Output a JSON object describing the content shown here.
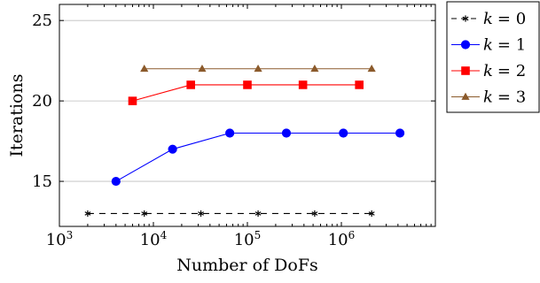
{
  "chart_data": {
    "type": "line",
    "xlabel": "Number of DoFs",
    "ylabel": "Iterations",
    "xscale": "log",
    "xlim": [
      1000,
      10000000
    ],
    "ylim": [
      12.2,
      26
    ],
    "x_ticks": [
      {
        "value": 1000,
        "base": "10",
        "exp": "3"
      },
      {
        "value": 10000,
        "base": "10",
        "exp": "4"
      },
      {
        "value": 100000,
        "base": "10",
        "exp": "5"
      },
      {
        "value": 1000000,
        "base": "10",
        "exp": "6"
      }
    ],
    "y_ticks": [
      "15",
      "20",
      "25"
    ],
    "grid": "horizontal",
    "legend_position": "outside-right",
    "series": [
      {
        "name": "k = 0",
        "label_var": "k",
        "label_eq": "= 0",
        "color": "#000000",
        "marker": "star",
        "dash": true,
        "x": [
          2000,
          8000,
          32000,
          130000,
          520000,
          2100000
        ],
        "y": [
          13,
          13,
          13,
          13,
          13,
          13
        ]
      },
      {
        "name": "k = 1",
        "label_var": "k",
        "label_eq": "= 1",
        "color": "#0000ff",
        "marker": "circle",
        "dash": false,
        "x": [
          4000,
          16000,
          65000,
          260000,
          1050000,
          4200000
        ],
        "y": [
          15,
          17,
          18,
          18,
          18,
          18
        ]
      },
      {
        "name": "k = 2",
        "label_var": "k",
        "label_eq": "= 2",
        "color": "#ff0000",
        "marker": "square",
        "dash": false,
        "x": [
          6000,
          25000,
          100000,
          390000,
          1550000
        ],
        "y": [
          20,
          21,
          21,
          21,
          21
        ]
      },
      {
        "name": "k = 3",
        "label_var": "k",
        "label_eq": "= 3",
        "color": "#8b5a2b",
        "marker": "triangle",
        "dash": false,
        "x": [
          8000,
          33000,
          130000,
          520000,
          2100000
        ],
        "y": [
          22,
          22,
          22,
          22,
          22
        ]
      }
    ]
  }
}
